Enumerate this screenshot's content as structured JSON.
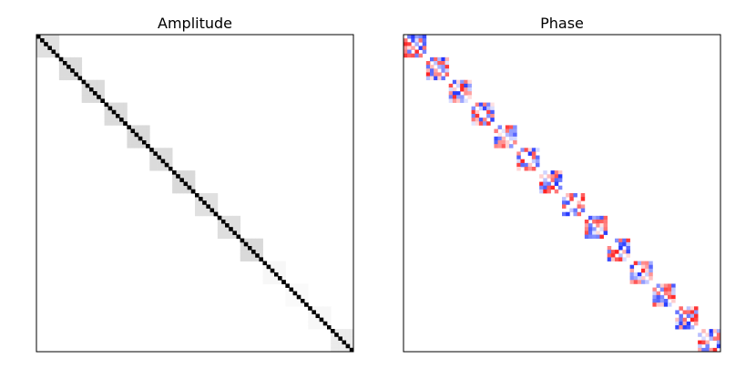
{
  "chart_data": [
    {
      "type": "heatmap",
      "title": "Amplitude",
      "xlabel": "",
      "ylabel": "",
      "grid": false,
      "matrix_size": 84,
      "colormap": "gray_r",
      "value_range": [
        0,
        1
      ],
      "diagonal_value": 1.0,
      "blocks": [
        {
          "start": 0,
          "size": 6,
          "offdiag_value": 0.12
        },
        {
          "start": 6,
          "size": 6,
          "offdiag_value": 0.14
        },
        {
          "start": 12,
          "size": 6,
          "offdiag_value": 0.14
        },
        {
          "start": 18,
          "size": 6,
          "offdiag_value": 0.14
        },
        {
          "start": 24,
          "size": 6,
          "offdiag_value": 0.15
        },
        {
          "start": 30,
          "size": 6,
          "offdiag_value": 0.14
        },
        {
          "start": 36,
          "size": 6,
          "offdiag_value": 0.15
        },
        {
          "start": 42,
          "size": 6,
          "offdiag_value": 0.12
        },
        {
          "start": 48,
          "size": 6,
          "offdiag_value": 0.13
        },
        {
          "start": 54,
          "size": 6,
          "offdiag_value": 0.15
        },
        {
          "start": 60,
          "size": 6,
          "offdiag_value": 0.03
        },
        {
          "start": 66,
          "size": 6,
          "offdiag_value": 0.02
        },
        {
          "start": 72,
          "size": 6,
          "offdiag_value": 0.03
        },
        {
          "start": 78,
          "size": 6,
          "offdiag_value": 0.08
        }
      ]
    },
    {
      "type": "heatmap",
      "title": "Phase",
      "xlabel": "",
      "ylabel": "",
      "grid": false,
      "matrix_size": 84,
      "colormap": "bwr",
      "value_range": [
        -3.14,
        3.14
      ],
      "diagonal_value": 0,
      "blocks": [
        {
          "start": 0,
          "size": 6
        },
        {
          "start": 6,
          "size": 6
        },
        {
          "start": 12,
          "size": 6
        },
        {
          "start": 18,
          "size": 6
        },
        {
          "start": 24,
          "size": 6
        },
        {
          "start": 30,
          "size": 6
        },
        {
          "start": 36,
          "size": 6
        },
        {
          "start": 42,
          "size": 6
        },
        {
          "start": 48,
          "size": 6
        },
        {
          "start": 54,
          "size": 6
        },
        {
          "start": 60,
          "size": 6
        },
        {
          "start": 66,
          "size": 6
        },
        {
          "start": 72,
          "size": 6
        },
        {
          "start": 78,
          "size": 6
        }
      ]
    }
  ]
}
